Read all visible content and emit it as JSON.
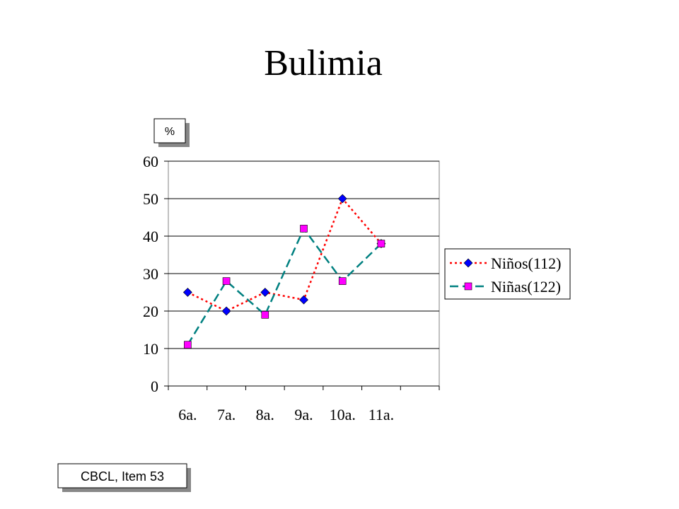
{
  "chart_data": {
    "type": "line",
    "title": "Bulimia",
    "y_label": "%",
    "note": "CBCL, Item 53",
    "categories": [
      "6a.",
      "7a.",
      "8a.",
      "9a.",
      "10a.",
      "11a.",
      null
    ],
    "series": [
      {
        "name": "Niños(112)",
        "color": "#ff0000",
        "marker_color": "#0000ff",
        "marker": "diamond",
        "dash": "3,4",
        "values": [
          25,
          20,
          25,
          23,
          50,
          38,
          null
        ]
      },
      {
        "name": "Niñas(122)",
        "color": "#008080",
        "marker_color": "#ff00ff",
        "marker": "square",
        "dash": "12,6",
        "values": [
          11,
          28,
          19,
          42,
          28,
          38,
          null
        ]
      }
    ],
    "ylim": [
      0,
      60
    ],
    "yticks": [
      0,
      10,
      20,
      30,
      40,
      50,
      60
    ],
    "grid": true
  }
}
